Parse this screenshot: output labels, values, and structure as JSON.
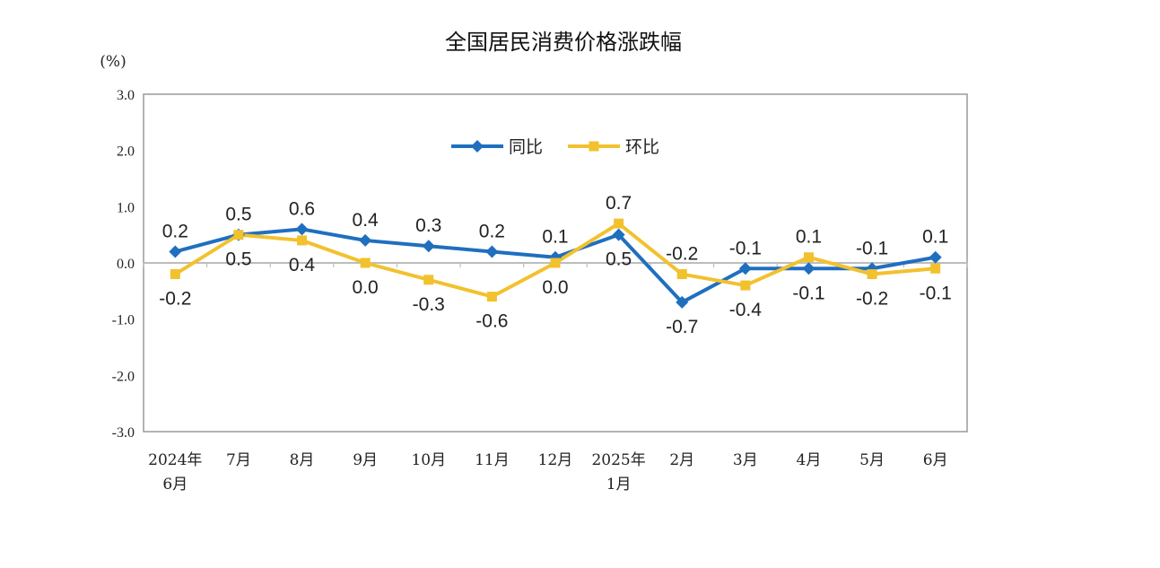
{
  "chart_data": {
    "type": "line",
    "title": "全国居民消费价格涨跌幅",
    "unit": "(%)",
    "ylim": [
      -3.0,
      3.0
    ],
    "yticks": [
      "3.0",
      "2.0",
      "1.0",
      "0.0",
      "-1.0",
      "-2.0",
      "-3.0"
    ],
    "categories": [
      [
        "2024年",
        "6月"
      ],
      [
        "7月"
      ],
      [
        "8月"
      ],
      [
        "9月"
      ],
      [
        "10月"
      ],
      [
        "11月"
      ],
      [
        "12月"
      ],
      [
        "2025年",
        "1月"
      ],
      [
        "2月"
      ],
      [
        "3月"
      ],
      [
        "4月"
      ],
      [
        "5月"
      ],
      [
        "6月"
      ]
    ],
    "series": [
      {
        "name": "同比",
        "color": "#1f6fbf",
        "marker": "diamond",
        "values": [
          0.2,
          0.5,
          0.6,
          0.4,
          0.3,
          0.2,
          0.1,
          0.5,
          -0.7,
          -0.1,
          -0.1,
          -0.1,
          0.1
        ],
        "labels": [
          "0.2",
          "0.5",
          "0.6",
          "0.4",
          "0.3",
          "0.2",
          "0.1",
          "0.5",
          "-0.7",
          "-0.1",
          "-0.1",
          "-0.1",
          "0.1"
        ]
      },
      {
        "name": "环比",
        "color": "#f2c12e",
        "marker": "square",
        "values": [
          -0.2,
          0.5,
          0.4,
          0.0,
          -0.3,
          -0.6,
          0.0,
          0.7,
          -0.2,
          -0.4,
          0.1,
          -0.2,
          -0.1
        ],
        "labels": [
          "-0.2",
          "0.5",
          "0.4",
          "0.0",
          "-0.3",
          "-0.6",
          "0.0",
          "0.7",
          "-0.2",
          "-0.4",
          "0.1",
          "-0.2",
          "-0.1"
        ]
      }
    ],
    "legend": "top-center",
    "grid": false
  }
}
